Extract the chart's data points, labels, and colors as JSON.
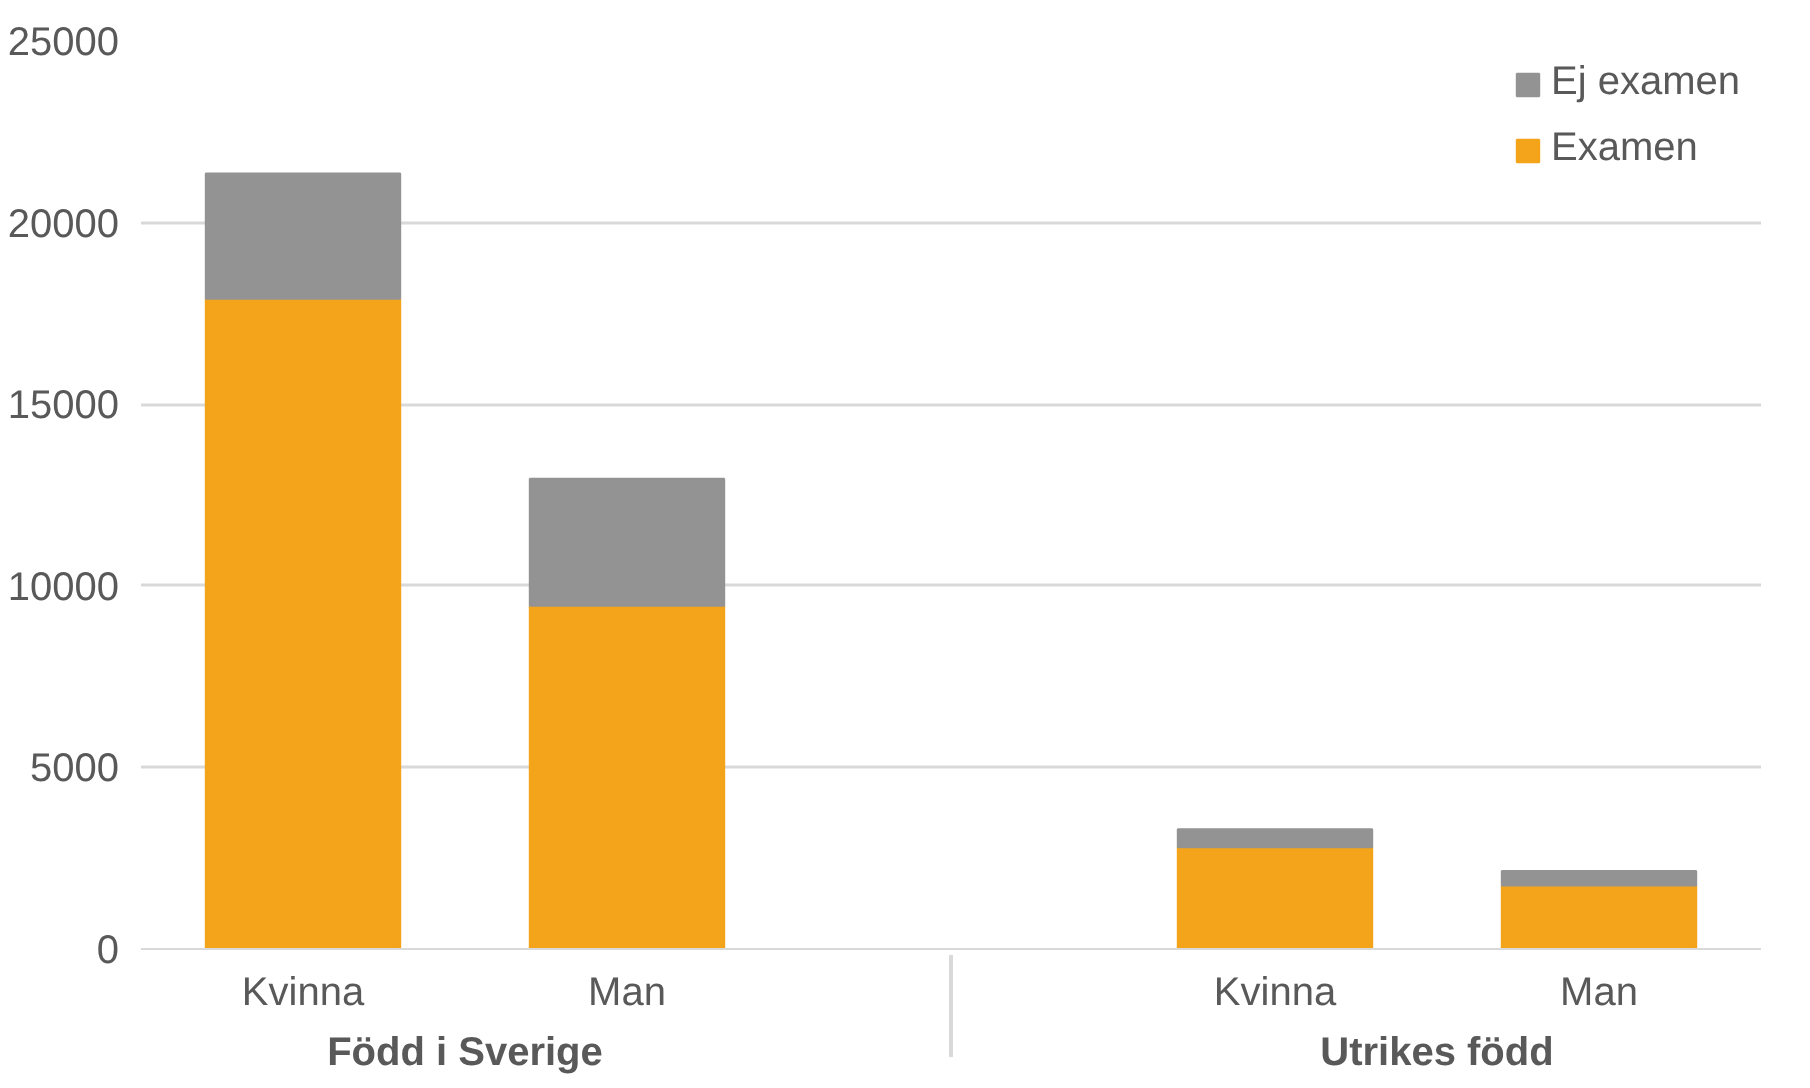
{
  "chart_data": {
    "type": "bar",
    "stacked": true,
    "categories": [
      "Kvinna",
      "Man",
      "Kvinna",
      "Man"
    ],
    "annotations": [
      "Född i Sverige",
      "Utrikes född"
    ],
    "series": [
      {
        "name": "Examen",
        "color": "#f4a41a",
        "values": [
          17900,
          9450,
          2800,
          1750
        ]
      },
      {
        "name": "Ej examen",
        "color": "#939393",
        "values": [
          3450,
          3500,
          500,
          400
        ]
      }
    ],
    "ylim": [
      0,
      25000
    ],
    "yticks": [
      0,
      5000,
      10000,
      15000,
      20000,
      25000
    ],
    "grid": "y",
    "legend": "top right"
  }
}
